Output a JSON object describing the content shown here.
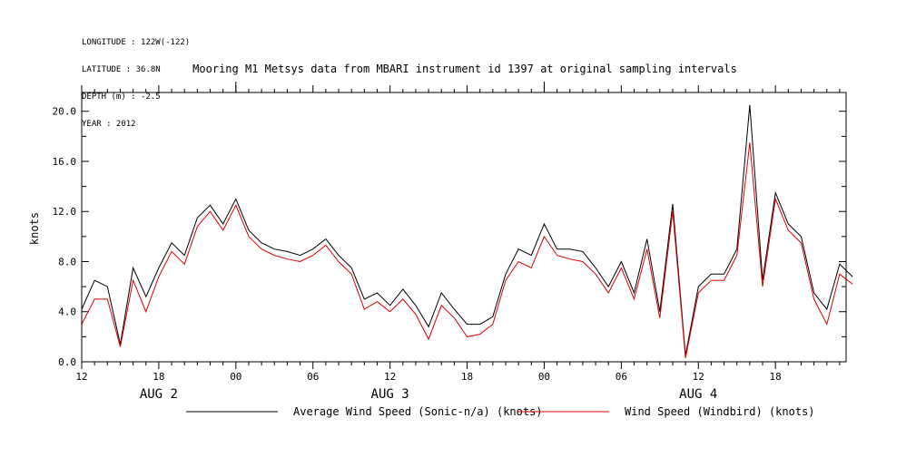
{
  "header": {
    "meta_lines": [
      "LONGITUDE : 122W(-122)",
      "LATITUDE : 36.8N",
      "DEPTH (m) : -2.5",
      "YEAR : 2012"
    ]
  },
  "chart_data": {
    "type": "line",
    "title": "Mooring M1 Metsys data from MBARI instrument id 1397 at original sampling intervals",
    "ylabel": "knots",
    "xlabel": "",
    "ylim": [
      0,
      21.5
    ],
    "yticks": [
      0.0,
      4.0,
      8.0,
      12.0,
      16.0,
      20.0
    ],
    "ytick_labels": [
      "0.0",
      "4.0",
      "8.0",
      "12.0",
      "16.0",
      "20.0"
    ],
    "xlim": [
      12,
      72
    ],
    "x_unit": "hours from 00Z AUG 2",
    "xticks": [
      12,
      18,
      24,
      30,
      36,
      42,
      48,
      54,
      60,
      66,
      72
    ],
    "xtick_labels": [
      "12",
      "18",
      "00",
      "06",
      "12",
      "18",
      "00",
      "06",
      "12",
      "18",
      ""
    ],
    "day_labels": [
      {
        "x": 18,
        "label": "AUG  2"
      },
      {
        "x": 36,
        "label": "AUG  3"
      },
      {
        "x": 60,
        "label": "AUG  4"
      }
    ],
    "legend_position": "bottom",
    "series": [
      {
        "name": "Average Wind Speed (Sonic-n/a) (knots)",
        "color": "#000000",
        "x": [
          12.0,
          13.0,
          14.0,
          15.0,
          16.0,
          17.0,
          18.0,
          19.0,
          20.0,
          21.0,
          22.0,
          23.0,
          24.0,
          25.0,
          26.0,
          27.0,
          28.0,
          29.0,
          30.0,
          31.0,
          32.0,
          33.0,
          34.0,
          35.0,
          36.0,
          37.0,
          38.0,
          39.0,
          40.0,
          41.0,
          42.0,
          43.0,
          44.0,
          45.0,
          46.0,
          47.0,
          48.0,
          49.0,
          50.0,
          51.0,
          52.0,
          53.0,
          54.0,
          55.0,
          56.0,
          57.0,
          58.0,
          59.0,
          60.0,
          61.0,
          62.0,
          63.0,
          64.0,
          65.0,
          66.0,
          67.0,
          68.0,
          69.0,
          70.0,
          71.0,
          72.0
        ],
        "values": [
          4.2,
          6.5,
          6.0,
          1.4,
          7.5,
          5.2,
          7.5,
          9.5,
          8.5,
          11.5,
          12.5,
          11.0,
          13.0,
          10.5,
          9.5,
          9.0,
          8.8,
          8.5,
          9.0,
          9.8,
          8.5,
          7.5,
          5.0,
          5.5,
          4.5,
          5.8,
          4.5,
          2.8,
          5.5,
          4.2,
          3.0,
          3.0,
          3.6,
          7.0,
          9.0,
          8.5,
          11.0,
          9.0,
          9.0,
          8.8,
          7.5,
          6.0,
          8.0,
          5.5,
          9.8,
          4.0,
          12.6,
          0.5,
          6.0,
          7.0,
          7.0,
          9.0,
          20.5,
          6.5,
          13.5,
          11.0,
          10.0,
          5.5,
          4.2,
          7.8,
          6.8
        ]
      },
      {
        "name": "Wind Speed (Windbird) (knots)",
        "color": "#dd0000",
        "x": [
          12.0,
          13.0,
          14.0,
          15.0,
          16.0,
          17.0,
          18.0,
          19.0,
          20.0,
          21.0,
          22.0,
          23.0,
          24.0,
          25.0,
          26.0,
          27.0,
          28.0,
          29.0,
          30.0,
          31.0,
          32.0,
          33.0,
          34.0,
          35.0,
          36.0,
          37.0,
          38.0,
          39.0,
          40.0,
          41.0,
          42.0,
          43.0,
          44.0,
          45.0,
          46.0,
          47.0,
          48.0,
          49.0,
          50.0,
          51.0,
          52.0,
          53.0,
          54.0,
          55.0,
          56.0,
          57.0,
          58.0,
          59.0,
          60.0,
          61.0,
          62.0,
          63.0,
          64.0,
          65.0,
          66.0,
          67.0,
          68.0,
          69.0,
          70.0,
          71.0,
          72.0
        ],
        "values": [
          3.0,
          5.0,
          5.0,
          1.2,
          6.5,
          4.0,
          6.8,
          8.8,
          7.8,
          10.8,
          12.0,
          10.5,
          12.5,
          10.0,
          9.0,
          8.5,
          8.2,
          8.0,
          8.5,
          9.3,
          8.0,
          7.0,
          4.2,
          4.8,
          4.0,
          5.0,
          3.8,
          1.8,
          4.5,
          3.5,
          2.0,
          2.2,
          3.0,
          6.5,
          8.0,
          7.5,
          10.0,
          8.5,
          8.2,
          8.0,
          7.0,
          5.5,
          7.5,
          5.0,
          9.0,
          3.5,
          12.0,
          0.3,
          5.5,
          6.5,
          6.5,
          8.5,
          17.5,
          6.0,
          13.0,
          10.5,
          9.5,
          5.0,
          3.0,
          7.0,
          6.2
        ]
      }
    ]
  }
}
